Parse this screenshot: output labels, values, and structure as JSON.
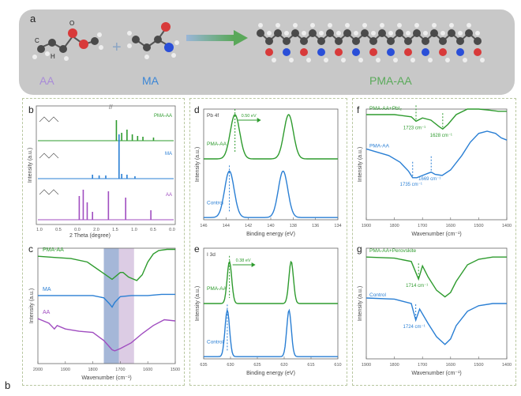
{
  "panel_a": {
    "letter": "a",
    "monomer1_label": "AA",
    "monomer2_label": "MA",
    "polymer_label": "PMA-AA",
    "plus_sign": "+",
    "atom_C": "C",
    "atom_H": "H",
    "atom_O": "O"
  },
  "footer_letter": "b",
  "chart_data": [
    {
      "panel": "b",
      "type": "bar",
      "title": "",
      "xlabel": "2 Theta  (degree)",
      "ylabel": "Intensity (a.u.)",
      "series": [
        {
          "name": "PMA-AA",
          "color": "#2e9b2e"
        },
        {
          "name": "MA",
          "color": "#2a7fd4"
        },
        {
          "name": "AA",
          "color": "#a04dc0"
        }
      ],
      "xtick_labels": [
        "1.0",
        "0.5",
        "0.0",
        "2.0",
        "1.5",
        "1.0",
        "0.5",
        "0.0"
      ],
      "ylim": [
        0,
        1
      ]
    },
    {
      "panel": "c",
      "type": "line",
      "xlabel": "Wavenumber (cm⁻¹)",
      "ylabel": "Intensity (a.u.)",
      "xlim": [
        2000,
        1500
      ],
      "xticks": [
        2000,
        1900,
        1800,
        1700,
        1600,
        1500
      ],
      "highlight_bands": [
        {
          "from": 1760,
          "to": 1705,
          "color": "#7f98c7"
        },
        {
          "from": 1705,
          "to": 1650,
          "color": "#cdb6d8"
        }
      ],
      "series": [
        {
          "name": "PMA-AA",
          "color": "#2e9b2e",
          "x": [
            2000,
            1940,
            1880,
            1820,
            1760,
            1730,
            1700,
            1690,
            1670,
            1640,
            1620,
            1600,
            1580,
            1560,
            1530,
            1500
          ],
          "y": [
            0.93,
            0.92,
            0.91,
            0.88,
            0.78,
            0.73,
            0.79,
            0.79,
            0.75,
            0.72,
            0.77,
            0.88,
            0.95,
            0.98,
            0.99,
            0.99
          ]
        },
        {
          "name": "MA",
          "color": "#2a7fd4",
          "x": [
            2000,
            1900,
            1800,
            1760,
            1740,
            1730,
            1720,
            1700,
            1660,
            1600,
            1550,
            1500
          ],
          "y": [
            0.59,
            0.59,
            0.59,
            0.57,
            0.52,
            0.49,
            0.53,
            0.58,
            0.59,
            0.59,
            0.6,
            0.6
          ]
        },
        {
          "name": "AA",
          "color": "#a04dc0",
          "x": [
            2000,
            1960,
            1940,
            1930,
            1900,
            1850,
            1800,
            1760,
            1730,
            1720,
            1700,
            1660,
            1620,
            1580,
            1540,
            1500
          ],
          "y": [
            0.39,
            0.35,
            0.3,
            0.33,
            0.3,
            0.28,
            0.27,
            0.2,
            0.12,
            0.11,
            0.13,
            0.18,
            0.26,
            0.33,
            0.38,
            0.37
          ]
        }
      ]
    },
    {
      "panel": "d",
      "type": "line",
      "xlabel": "Binding energy (eV)",
      "ylabel": "Intensity (a.u.)",
      "annotation_top": "Pb 4f",
      "shift_label": "0.50 eV",
      "xlim": [
        146,
        134
      ],
      "xticks": [
        146,
        144,
        142,
        140,
        138,
        136,
        134
      ],
      "series": [
        {
          "name": "PMA-AA",
          "color": "#2e9b2e",
          "offset": 0.55,
          "peaks": [
            {
              "center": 143.2,
              "height": 0.4,
              "width": 0.6
            },
            {
              "center": 138.4,
              "height": 0.4,
              "width": 0.6
            }
          ]
        },
        {
          "name": "Control",
          "color": "#2a7fd4",
          "offset": 0.02,
          "peaks": [
            {
              "center": 143.7,
              "height": 0.42,
              "width": 0.6
            },
            {
              "center": 138.9,
              "height": 0.42,
              "width": 0.6
            }
          ]
        }
      ]
    },
    {
      "panel": "e",
      "type": "line",
      "xlabel": "Binding energy (eV)",
      "ylabel": "Intensity (a.u.)",
      "annotation_top": "I 3d",
      "shift_label": "0.38 eV",
      "xlim": [
        635,
        610
      ],
      "xticks": [
        635,
        630,
        625,
        620,
        615,
        610
      ],
      "series": [
        {
          "name": "PMA-AA",
          "color": "#2e9b2e",
          "offset": 0.5,
          "peaks": [
            {
              "center": 630.2,
              "height": 0.38,
              "width": 0.6
            },
            {
              "center": 618.7,
              "height": 0.38,
              "width": 0.6
            }
          ]
        },
        {
          "name": "Control",
          "color": "#2a7fd4",
          "offset": 0.02,
          "peaks": [
            {
              "center": 630.6,
              "height": 0.42,
              "width": 0.6
            },
            {
              "center": 619.1,
              "height": 0.42,
              "width": 0.6
            }
          ]
        }
      ]
    },
    {
      "panel": "f",
      "type": "line",
      "xlabel": "Wavenumber (cm⁻¹)",
      "ylabel": "Intensity (a.u.)",
      "xlim": [
        1900,
        1400
      ],
      "xticks": [
        1900,
        1800,
        1700,
        1600,
        1500,
        1400
      ],
      "series": [
        {
          "name": "PMA-AA+PbI₂",
          "color": "#2e9b2e",
          "x": [
            1900,
            1800,
            1740,
            1723,
            1700,
            1670,
            1640,
            1628,
            1610,
            1580,
            1540,
            1500,
            1460,
            1430,
            1400
          ],
          "y": [
            0.95,
            0.95,
            0.93,
            0.89,
            0.92,
            0.9,
            0.84,
            0.82,
            0.86,
            0.95,
            1.0,
            1.0,
            0.99,
            0.98,
            0.98
          ],
          "annotations": [
            {
              "x": 1723,
              "label": "1723 cm⁻¹"
            },
            {
              "x": 1628,
              "label": "1628 cm⁻¹"
            }
          ]
        },
        {
          "name": "PMA-AA",
          "color": "#2a7fd4",
          "x": [
            1900,
            1820,
            1780,
            1750,
            1735,
            1720,
            1700,
            1680,
            1669,
            1655,
            1630,
            1600,
            1560,
            1530,
            1500,
            1470,
            1440,
            1420,
            1400
          ],
          "y": [
            0.64,
            0.58,
            0.52,
            0.44,
            0.38,
            0.38,
            0.4,
            0.42,
            0.43,
            0.41,
            0.4,
            0.45,
            0.58,
            0.7,
            0.78,
            0.8,
            0.78,
            0.74,
            0.72
          ],
          "annotations": [
            {
              "x": 1735,
              "label": "1735 cm⁻¹"
            },
            {
              "x": 1669,
              "label": "1669 cm⁻¹"
            }
          ]
        }
      ]
    },
    {
      "panel": "g",
      "type": "line",
      "xlabel": "Wavenumber (cm⁻¹)",
      "ylabel": "Intensity (a.u.)",
      "xlim": [
        1900,
        1400
      ],
      "xticks": [
        1900,
        1800,
        1700,
        1600,
        1500,
        1400
      ],
      "series": [
        {
          "name": "PMA-AA+Perovskite",
          "color": "#2e9b2e",
          "x": [
            1900,
            1800,
            1740,
            1714,
            1700,
            1680,
            1650,
            1620,
            1600,
            1580,
            1540,
            1500,
            1450,
            1400
          ],
          "y": [
            0.92,
            0.91,
            0.88,
            0.72,
            0.84,
            0.74,
            0.62,
            0.56,
            0.6,
            0.7,
            0.85,
            0.9,
            0.92,
            0.92
          ],
          "annotations": [
            {
              "x": 1714,
              "label": "1714 cm⁻¹"
            }
          ]
        },
        {
          "name": "Control",
          "color": "#2a7fd4",
          "x": [
            1900,
            1800,
            1740,
            1724,
            1710,
            1680,
            1650,
            1620,
            1600,
            1580,
            1540,
            1500,
            1450,
            1400
          ],
          "y": [
            0.55,
            0.54,
            0.5,
            0.35,
            0.45,
            0.32,
            0.2,
            0.13,
            0.18,
            0.3,
            0.43,
            0.48,
            0.5,
            0.5
          ],
          "annotations": [
            {
              "x": 1724,
              "label": "1724 cm⁻¹"
            }
          ]
        }
      ]
    }
  ]
}
